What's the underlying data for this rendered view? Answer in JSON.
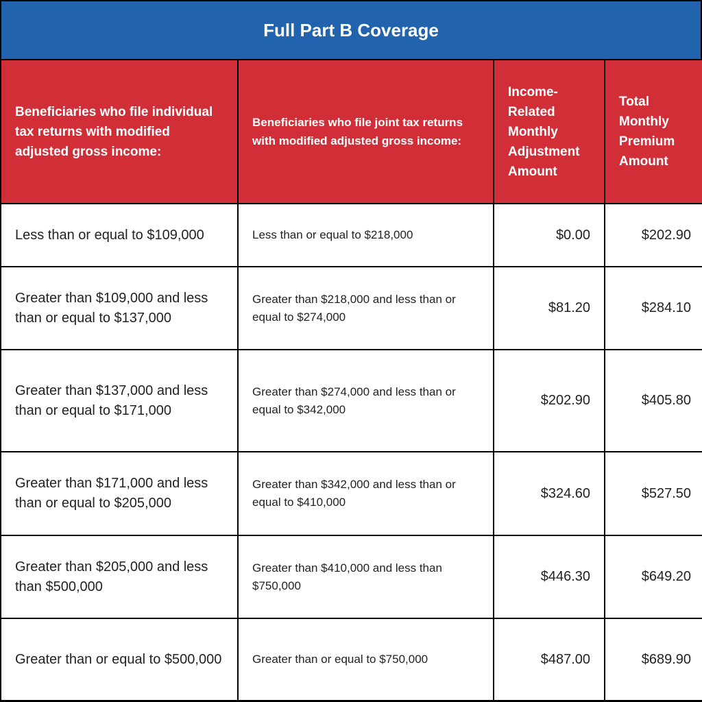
{
  "title": "Full Part B Coverage",
  "colors": {
    "title_bg": "#2163ad",
    "header_bg": "#d12e37"
  },
  "headers": [
    "Beneficiaries who file individual tax returns with modified adjusted gross income:",
    "Beneficiaries who file joint tax returns with modified adjusted gross income:",
    "Income-Related Monthly Adjustment Amount",
    "Total Monthly Premium Amount"
  ],
  "rows": [
    [
      "Less than or equal to $109,000",
      "Less than or equal to $218,000",
      "$0.00",
      "$202.90"
    ],
    [
      "Greater than $109,000 and less than or equal to $137,000",
      "Greater than $218,000 and less than or equal to $274,000",
      "$81.20",
      "$284.10"
    ],
    [
      "Greater than $137,000 and less than or equal to $171,000",
      "Greater than $274,000 and less than or equal to $342,000",
      "$202.90",
      "$405.80"
    ],
    [
      "Greater than $171,000 and less than or equal to $205,000",
      "Greater than $342,000 and less than or equal to $410,000",
      "$324.60",
      "$527.50"
    ],
    [
      "Greater than $205,000 and less than $500,000",
      "Greater than $410,000 and less than $750,000",
      "$446.30",
      "$649.20"
    ],
    [
      "Greater than or equal to $500,000",
      "Greater than or equal to $750,000",
      "$487.00",
      "$689.90"
    ]
  ]
}
